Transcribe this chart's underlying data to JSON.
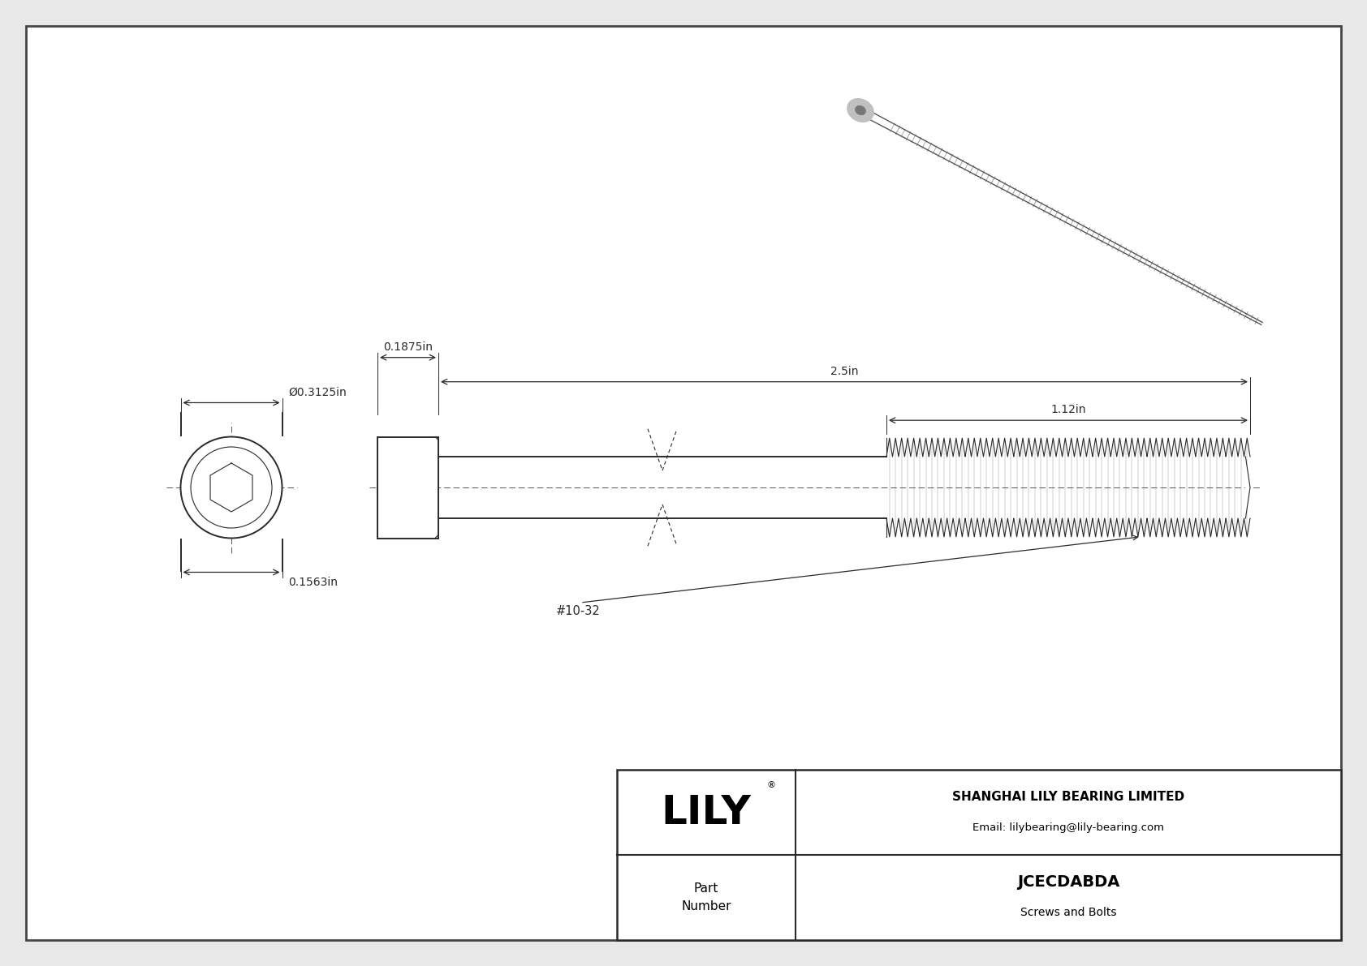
{
  "bg_color": "#e8e8e8",
  "drawing_bg": "#ffffff",
  "line_color": "#2a2a2a",
  "border_color": "#444444",
  "title": "JCECDABDA",
  "subtitle": "Screws and Bolts",
  "company": "SHANGHAI LILY BEARING LIMITED",
  "email": "Email: lilybearing@lily-bearing.com",
  "part_label": "Part\nNumber",
  "dim_diameter": "Ø0.3125in",
  "dim_head_height": "0.1563in",
  "dim_head_width": "0.1875in",
  "dim_total_length": "2.5in",
  "dim_thread_length": "1.12in",
  "dim_thread_label": "#10-32"
}
